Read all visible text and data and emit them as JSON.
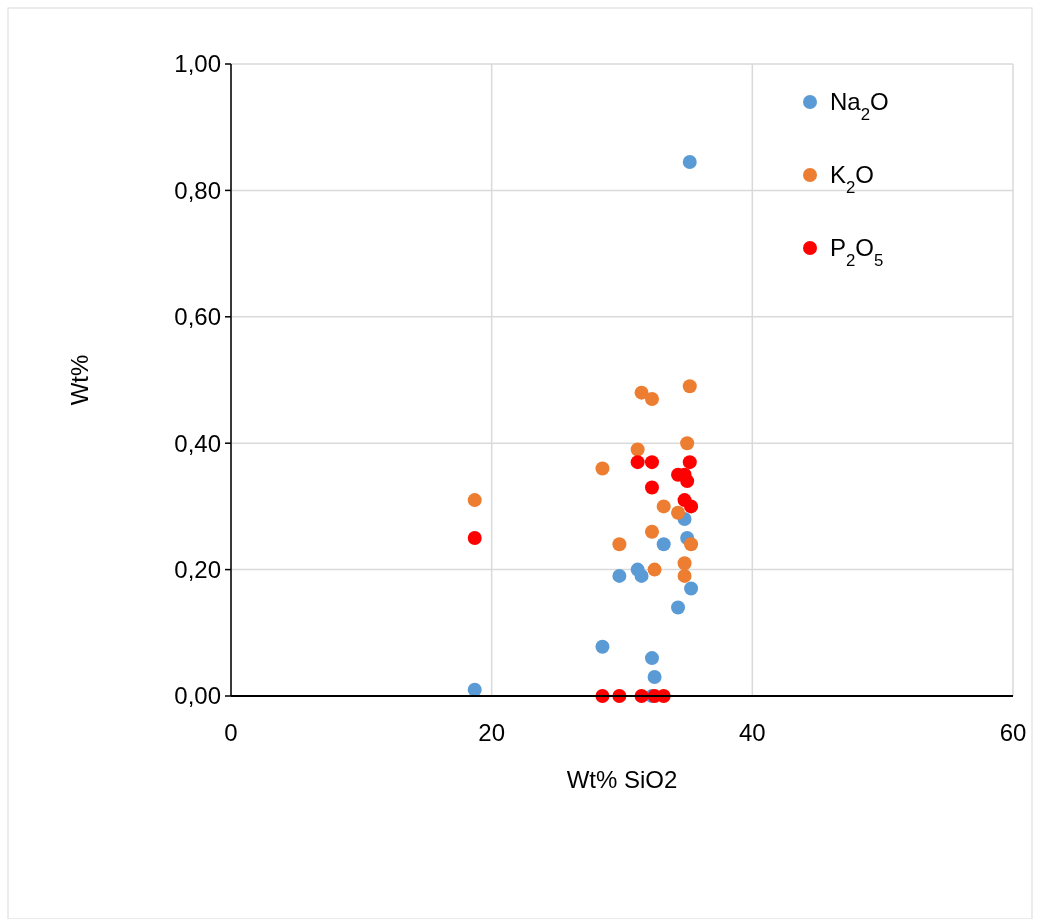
{
  "chart_data": {
    "type": "scatter",
    "xlabel": "Wt% SiO2",
    "ylabel": "Wt%",
    "xlim": [
      0,
      60
    ],
    "xticks": [
      0,
      20,
      40,
      60
    ],
    "ylim": [
      0,
      1
    ],
    "yticks": [
      {
        "value": 0,
        "label": "0,00"
      },
      {
        "value": 0.2,
        "label": "0,20"
      },
      {
        "value": 0.4,
        "label": "0,40"
      },
      {
        "value": 0.6,
        "label": "0,60"
      },
      {
        "value": 0.8,
        "label": "0,80"
      },
      {
        "value": 1,
        "label": "1,00"
      }
    ],
    "grid": true,
    "legend": "top right",
    "marker": "circle",
    "series": [
      {
        "name": "Na$_{2}$O",
        "color": "#5b9bd5",
        "x": [
          18.7,
          28.5,
          29.8,
          31.2,
          31.5,
          32.3,
          32.5,
          32.3,
          33.2,
          34.3,
          34.8,
          35.0,
          35.3,
          35.2
        ],
        "values": [
          0.01,
          0.078,
          0.19,
          0.2,
          0.19,
          0.06,
          0.03,
          0,
          0.24,
          0.14,
          0.28,
          0.25,
          0.17,
          0.845
        ]
      },
      {
        "name": "K$_{2}$O",
        "color": "#ed7d31",
        "x": [
          18.7,
          28.5,
          29.8,
          31.2,
          31.5,
          32.3,
          32.3,
          32.5,
          33.2,
          34.3,
          34.8,
          34.8,
          35.0,
          35.2,
          35.3
        ],
        "values": [
          0.31,
          0.36,
          0.24,
          0.39,
          0.48,
          0.47,
          0.26,
          0.2,
          0.3,
          0.29,
          0.21,
          0.19,
          0.4,
          0.49,
          0.24
        ]
      },
      {
        "name": "P$_{2}$O$_{5}$",
        "color": "#ff0000",
        "x": [
          18.7,
          31.2,
          32.3,
          32.3,
          34.3,
          34.8,
          34.8,
          35.0,
          35.2,
          35.3,
          28.5,
          29.8,
          31.5,
          32.5,
          33.2
        ],
        "values": [
          0.25,
          0.37,
          0.37,
          0.33,
          0.35,
          0.35,
          0.31,
          0.34,
          0.37,
          0.3,
          0,
          0,
          0,
          0,
          0
        ]
      }
    ]
  }
}
